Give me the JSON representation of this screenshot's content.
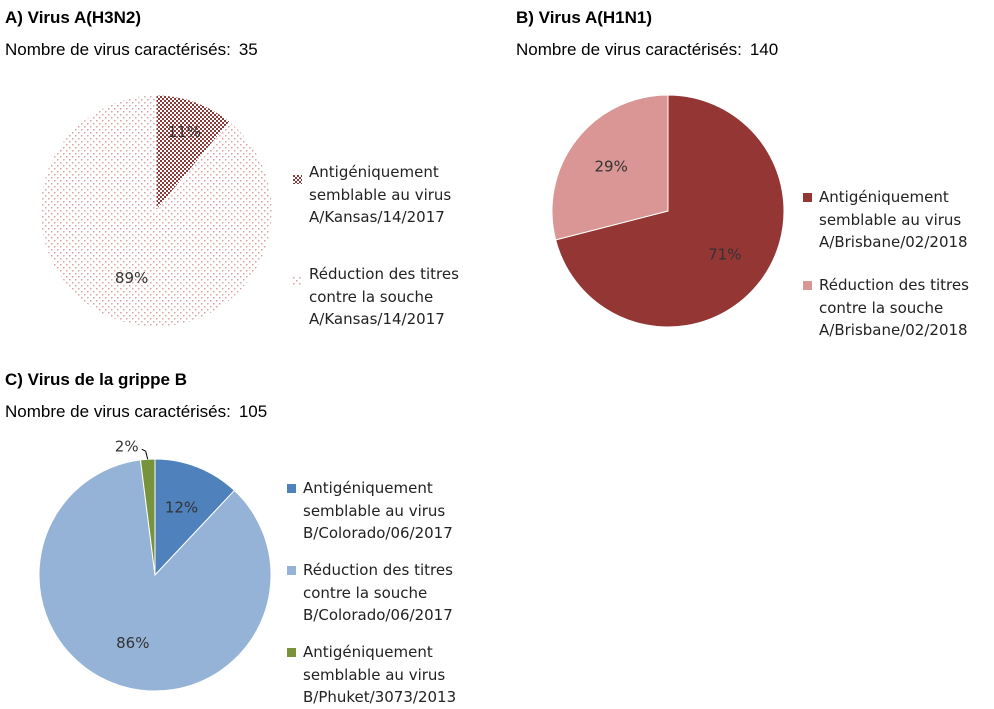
{
  "chart_data": [
    {
      "type": "pie",
      "panel_id": "a",
      "title": "A) Virus A(H3N2)",
      "count_label": "Nombre de virus caractérisés:",
      "count": "35",
      "slices": [
        {
          "value": 11,
          "label": "11%",
          "color": "#8b3a3a",
          "legend": [
            "Antigéniquement",
            "semblable au virus",
            "A/Kansas/14/2017"
          ]
        },
        {
          "value": 89,
          "label": "89%",
          "color": "#d9a3a3",
          "legend": [
            "Réduction des titres",
            "contre la souche",
            "A/Kansas/14/2017"
          ]
        }
      ],
      "patterned": true,
      "legend_placement": "right"
    },
    {
      "type": "pie",
      "panel_id": "b",
      "title": "B) Virus A(H1N1)",
      "count_label": "Nombre de virus caractérisés:",
      "count": "140",
      "slices": [
        {
          "value": 71,
          "label": "71%",
          "color": "#943634",
          "legend": [
            "Antigéniquement",
            "semblable au virus",
            "A/Brisbane/02/2018"
          ]
        },
        {
          "value": 29,
          "label": "29%",
          "color": "#d99694",
          "legend": [
            "Réduction des titres",
            "contre la souche",
            "A/Brisbane/02/2018"
          ]
        }
      ],
      "patterned": false,
      "legend_placement": "right"
    },
    {
      "type": "pie",
      "panel_id": "c",
      "title": "C) Virus de la grippe B",
      "count_label": "Nombre de virus caractérisés:",
      "count": "105",
      "slices": [
        {
          "value": 12,
          "label": "12%",
          "color": "#4f81bd",
          "legend": [
            "Antigéniquement",
            "semblable au virus",
            "B/Colorado/06/2017"
          ]
        },
        {
          "value": 86,
          "label": "86%",
          "color": "#95b3d7",
          "legend": [
            "Réduction des titres",
            "contre la souche",
            "B/Colorado/06/2017"
          ]
        },
        {
          "value": 2,
          "label": "2%",
          "color": "#77933c",
          "legend": [
            "Antigéniquement",
            "semblable au virus",
            "B/Phuket/3073/2013"
          ]
        }
      ],
      "patterned": false,
      "legend_placement": "right"
    }
  ]
}
